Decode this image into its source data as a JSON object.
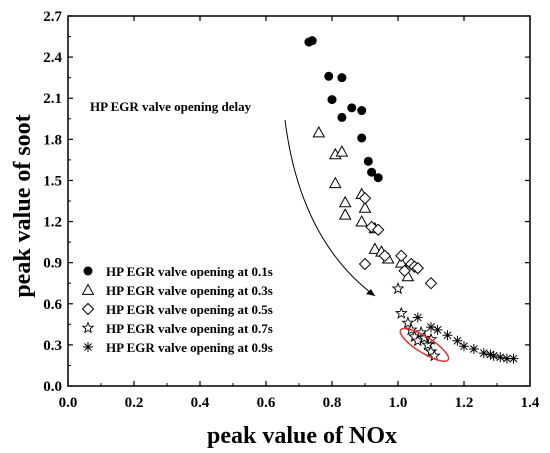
{
  "chart_data": {
    "type": "scatter",
    "xlabel": "peak value of NOx",
    "ylabel": "peak value of soot",
    "xlim": [
      0.0,
      1.4
    ],
    "ylim": [
      0.0,
      2.7
    ],
    "xticks": [
      "0.0",
      "0.2",
      "0.4",
      "0.6",
      "0.8",
      "1.0",
      "1.2",
      "1.4"
    ],
    "yticks": [
      "0.0",
      "0.3",
      "0.6",
      "0.9",
      "1.2",
      "1.5",
      "1.8",
      "2.1",
      "2.4",
      "2.7"
    ],
    "legend_position": "bottom-left",
    "annotation": "HP EGR valve opening delay",
    "series": [
      {
        "name": "HP EGR valve opening at 0.1s",
        "marker": "filled-circle",
        "points": [
          [
            0.73,
            2.51
          ],
          [
            0.74,
            2.52
          ],
          [
            0.79,
            2.26
          ],
          [
            0.83,
            2.25
          ],
          [
            0.8,
            2.09
          ],
          [
            0.86,
            2.03
          ],
          [
            0.89,
            2.01
          ],
          [
            0.83,
            1.96
          ],
          [
            0.89,
            1.81
          ],
          [
            0.91,
            1.64
          ],
          [
            0.92,
            1.56
          ],
          [
            0.94,
            1.52
          ]
        ]
      },
      {
        "name": "HP EGR valve opening at 0.3s",
        "marker": "open-triangle",
        "points": [
          [
            0.76,
            1.85
          ],
          [
            0.81,
            1.69
          ],
          [
            0.83,
            1.71
          ],
          [
            0.81,
            1.48
          ],
          [
            0.84,
            1.34
          ],
          [
            0.84,
            1.25
          ],
          [
            0.89,
            1.4
          ],
          [
            0.9,
            1.3
          ],
          [
            0.89,
            1.2
          ],
          [
            0.93,
            1.15
          ],
          [
            0.93,
            1.0
          ],
          [
            0.95,
            0.98
          ],
          [
            0.97,
            0.93
          ],
          [
            1.01,
            0.9
          ],
          [
            1.03,
            0.8
          ]
        ]
      },
      {
        "name": "HP EGR valve opening at 0.5s",
        "marker": "open-diamond",
        "points": [
          [
            0.9,
            1.37
          ],
          [
            0.92,
            1.16
          ],
          [
            0.94,
            1.14
          ],
          [
            0.9,
            0.89
          ],
          [
            0.96,
            0.95
          ],
          [
            1.01,
            0.95
          ],
          [
            1.02,
            0.84
          ],
          [
            1.04,
            0.89
          ],
          [
            1.05,
            0.87
          ],
          [
            1.06,
            0.86
          ],
          [
            1.1,
            0.75
          ]
        ]
      },
      {
        "name": "HP EGR valve opening at 0.7s",
        "marker": "open-star",
        "points": [
          [
            1.0,
            0.71
          ],
          [
            1.01,
            0.53
          ],
          [
            1.03,
            0.46
          ],
          [
            1.04,
            0.41
          ],
          [
            1.05,
            0.36
          ],
          [
            1.06,
            0.33
          ],
          [
            1.07,
            0.39
          ],
          [
            1.09,
            0.3
          ],
          [
            1.1,
            0.25
          ],
          [
            1.11,
            0.22
          ],
          [
            1.08,
            0.35
          ],
          [
            1.1,
            0.34
          ]
        ]
      },
      {
        "name": "HP EGR valve opening at 0.9s",
        "marker": "asterisk",
        "points": [
          [
            1.06,
            0.5
          ],
          [
            1.1,
            0.43
          ],
          [
            1.12,
            0.41
          ],
          [
            1.15,
            0.37
          ],
          [
            1.18,
            0.33
          ],
          [
            1.2,
            0.29
          ],
          [
            1.23,
            0.27
          ],
          [
            1.26,
            0.24
          ],
          [
            1.28,
            0.23
          ],
          [
            1.29,
            0.22
          ],
          [
            1.31,
            0.21
          ],
          [
            1.33,
            0.2
          ],
          [
            1.35,
            0.2
          ]
        ]
      }
    ]
  }
}
